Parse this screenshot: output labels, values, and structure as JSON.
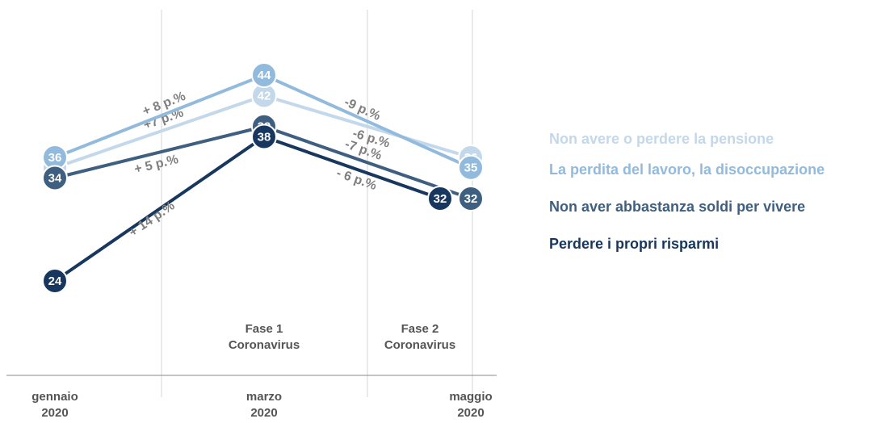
{
  "chart_data": {
    "type": "line",
    "categories": [
      "gennaio 2020",
      "marzo 2020",
      "maggio 2020"
    ],
    "series": [
      {
        "name": "Non avere o perdere la pensione",
        "color": "#c3d8ea",
        "values": [
          35,
          42,
          36
        ],
        "change_labels": [
          "+7 p.%",
          "-6 p.%"
        ]
      },
      {
        "name": "La perdita del lavoro, la disoccupazione",
        "color": "#92badc",
        "values": [
          36,
          44,
          35
        ],
        "change_labels": [
          "+ 8 p.%",
          "-9 p.%"
        ]
      },
      {
        "name": "Non aver abbastanza soldi per vivere",
        "color": "#3e5f80",
        "values": [
          34,
          39,
          32
        ],
        "change_labels": [
          "+ 5 p.%",
          "-7 p.%"
        ]
      },
      {
        "name": "Perdere i propri risparmi",
        "color": "#17375f",
        "values": [
          24,
          38,
          32
        ],
        "change_labels": [
          "+ 14 p.%",
          "- 6 p.%"
        ]
      }
    ],
    "annotations": [
      "Fase 1 Coronavirus",
      "Fase 2 Coronavirus"
    ]
  }
}
